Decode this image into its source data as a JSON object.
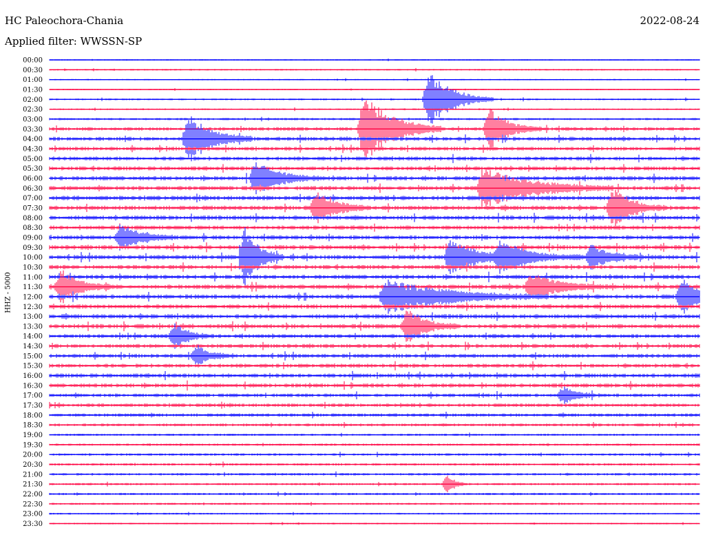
{
  "header": {
    "station": "HC Paleochora-Chania",
    "filter_label": "Applied filter: WWSSN-SP",
    "date": "2022-08-24",
    "channel_label": "HHZ - 5000"
  },
  "chart_data": {
    "type": "line",
    "title": "HC Paleochora-Chania",
    "subtitle": "Applied filter: WWSSN-SP",
    "date": "2022-08-24",
    "ylabel": "HHZ - 5000",
    "grid": false,
    "row_labels": [
      "00:00",
      "00:30",
      "01:00",
      "01:30",
      "02:00",
      "02:30",
      "03:00",
      "03:30",
      "04:00",
      "04:30",
      "05:00",
      "05:30",
      "06:00",
      "06:30",
      "07:00",
      "07:30",
      "08:00",
      "08:30",
      "09:00",
      "09:30",
      "10:00",
      "10:30",
      "11:00",
      "11:30",
      "12:00",
      "12:30",
      "13:00",
      "13:30",
      "14:00",
      "14:30",
      "15:00",
      "15:30",
      "16:00",
      "16:30",
      "17:00",
      "17:30",
      "18:00",
      "18:30",
      "19:00",
      "19:30",
      "20:00",
      "20:30",
      "21:00",
      "21:30",
      "22:00",
      "22:30",
      "23:00",
      "23:30"
    ],
    "row_minutes": 30,
    "colors": [
      "#0000ff",
      "#ff0040"
    ],
    "activity": [
      0.3,
      0.35,
      0.3,
      0.3,
      0.4,
      0.35,
      0.5,
      0.8,
      0.9,
      0.85,
      0.9,
      0.9,
      0.95,
      0.95,
      1.0,
      1.0,
      1.0,
      0.95,
      0.95,
      1.0,
      1.0,
      0.95,
      0.95,
      1.0,
      1.0,
      1.0,
      1.0,
      1.0,
      0.9,
      0.9,
      0.9,
      0.9,
      0.95,
      0.9,
      0.8,
      0.8,
      0.75,
      0.65,
      0.5,
      0.5,
      0.55,
      0.55,
      0.55,
      0.5,
      0.5,
      0.45,
      0.4,
      0.35
    ],
    "events": [
      {
        "row": 4,
        "minute": 17.5,
        "amplitude": 4.5,
        "width": 1.0
      },
      {
        "row": 7,
        "minute": 14.5,
        "amplitude": 5.5,
        "width": 1.2
      },
      {
        "row": 7,
        "minute": 20.3,
        "amplitude": 3.0,
        "width": 0.8
      },
      {
        "row": 8,
        "minute": 6.4,
        "amplitude": 3.5,
        "width": 1.0
      },
      {
        "row": 12,
        "minute": 9.5,
        "amplitude": 2.5,
        "width": 1.0
      },
      {
        "row": 13,
        "minute": 20.0,
        "amplitude": 3.0,
        "width": 2.0
      },
      {
        "row": 15,
        "minute": 12.3,
        "amplitude": 2.5,
        "width": 0.8
      },
      {
        "row": 15,
        "minute": 26.0,
        "amplitude": 3.0,
        "width": 0.8
      },
      {
        "row": 18,
        "minute": 3.3,
        "amplitude": 2.0,
        "width": 0.8
      },
      {
        "row": 20,
        "minute": 9.0,
        "amplitude": 4.5,
        "width": 0.6
      },
      {
        "row": 20,
        "minute": 18.5,
        "amplitude": 2.5,
        "width": 1.3
      },
      {
        "row": 20,
        "minute": 20.8,
        "amplitude": 2.0,
        "width": 1.3
      },
      {
        "row": 20,
        "minute": 25.0,
        "amplitude": 2.0,
        "width": 0.8
      },
      {
        "row": 23,
        "minute": 0.5,
        "amplitude": 2.5,
        "width": 0.8
      },
      {
        "row": 23,
        "minute": 22.2,
        "amplitude": 2.0,
        "width": 1.2
      },
      {
        "row": 24,
        "minute": 15.5,
        "amplitude": 2.5,
        "width": 2.5
      },
      {
        "row": 24,
        "minute": 29.2,
        "amplitude": 2.5,
        "width": 0.8
      },
      {
        "row": 27,
        "minute": 16.5,
        "amplitude": 2.5,
        "width": 0.8
      },
      {
        "row": 28,
        "minute": 5.8,
        "amplitude": 1.8,
        "width": 0.6
      },
      {
        "row": 30,
        "minute": 6.8,
        "amplitude": 1.5,
        "width": 0.6
      },
      {
        "row": 34,
        "minute": 23.7,
        "amplitude": 1.2,
        "width": 0.6
      },
      {
        "row": 43,
        "minute": 18.4,
        "amplitude": 1.5,
        "width": 0.3
      }
    ]
  }
}
